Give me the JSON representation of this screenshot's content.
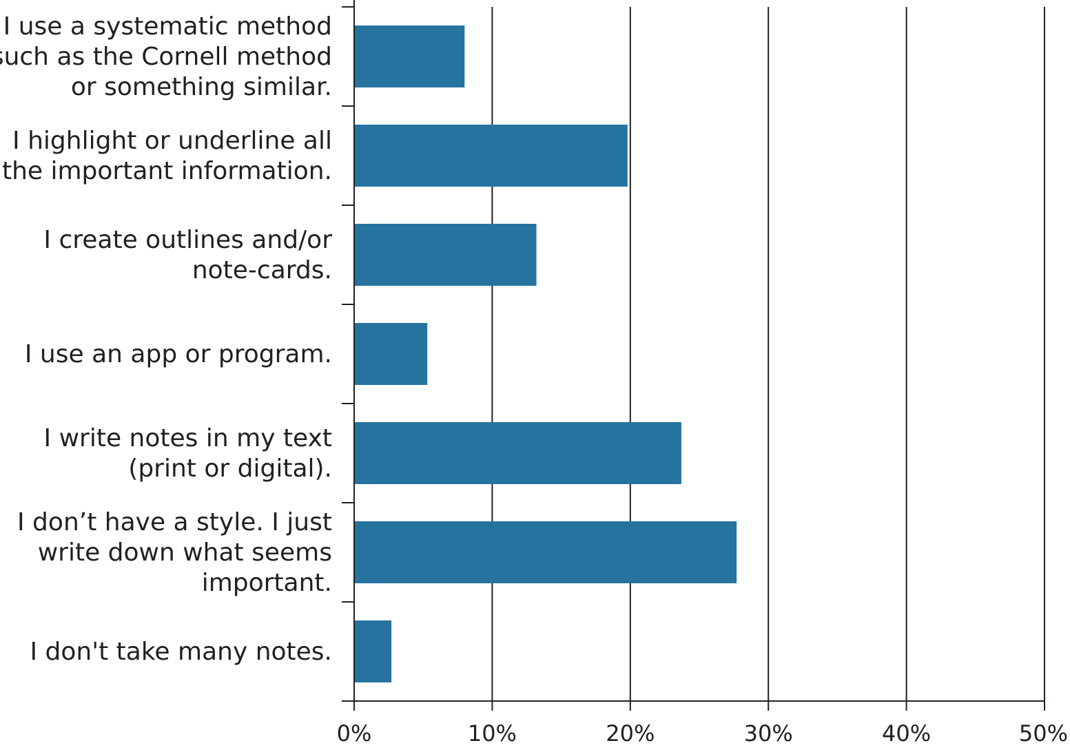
{
  "chart_data": {
    "type": "bar",
    "orientation": "horizontal",
    "title": "",
    "xlabel": "",
    "ylabel": "",
    "categories": [
      [
        "I use a systematic method",
        "such as the Cornell method",
        "or something similar."
      ],
      [
        "I highlight or underline all",
        "the important information."
      ],
      [
        "I create outlines and/or",
        "note-cards."
      ],
      [
        "I use an app or program."
      ],
      [
        "I write notes in my text",
        "(print or digital)."
      ],
      [
        "I don’t have a style. I just",
        "write down what seems",
        "important."
      ],
      [
        "I don't take many notes."
      ]
    ],
    "values": [
      8,
      19.8,
      13.2,
      5.3,
      23.7,
      27.7,
      2.7
    ],
    "xlim": [
      0,
      50
    ],
    "ticks": [
      0,
      10,
      20,
      30,
      40,
      50
    ],
    "tick_labels": [
      "0%",
      "10%",
      "20%",
      "30%",
      "40%",
      "50%"
    ],
    "grid": "vertical",
    "legend": "none",
    "bar_color": "#2673a0"
  }
}
